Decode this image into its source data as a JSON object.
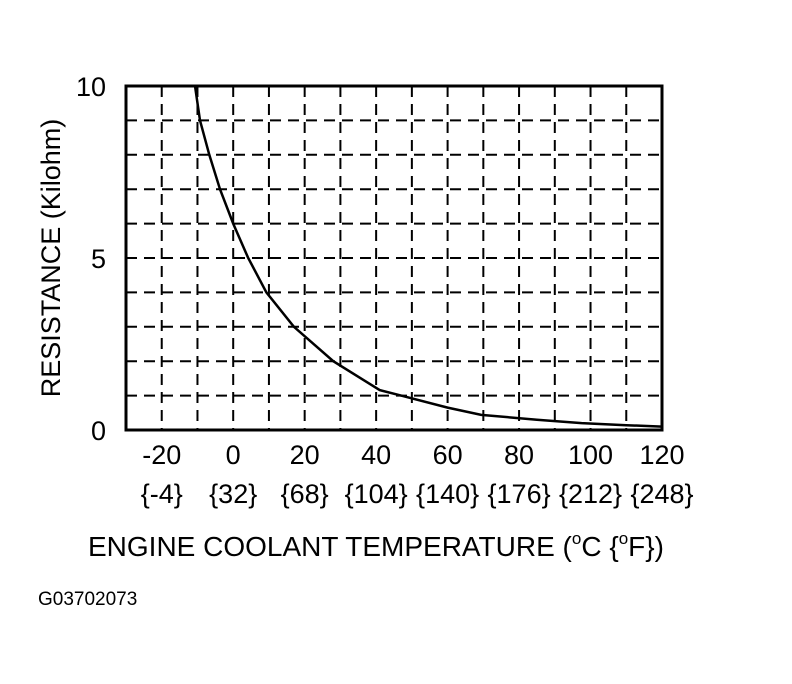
{
  "chart_data": {
    "type": "line",
    "title": "",
    "xlabel": "ENGINE COOLANT TEMPERATURE (",
    "xlabel_unit_c": "C {",
    "xlabel_unit_f": "F})",
    "xlabel_degree": "o",
    "ylabel": "RESISTANCE (Kilohm)",
    "xlim": [
      -30,
      120
    ],
    "ylim": [
      0,
      10
    ],
    "grid": true,
    "grid_style": "dashed",
    "x_grid_step": 10,
    "y_grid_step": 1,
    "x_ticks": [
      {
        "c": -20,
        "label": "-20",
        "f_label": "{-4}"
      },
      {
        "c": 0,
        "label": "0",
        "f_label": "{32}"
      },
      {
        "c": 20,
        "label": "20",
        "f_label": "{68}"
      },
      {
        "c": 40,
        "label": "40",
        "f_label": "{104}"
      },
      {
        "c": 60,
        "label": "60",
        "f_label": "{140}"
      },
      {
        "c": 80,
        "label": "80",
        "f_label": "{176}"
      },
      {
        "c": 100,
        "label": "100",
        "f_label": "{212}"
      },
      {
        "c": 120,
        "label": "120",
        "f_label": "{248}"
      }
    ],
    "y_ticks": [
      {
        "v": 0,
        "label": "0"
      },
      {
        "v": 5,
        "label": "5"
      },
      {
        "v": 10,
        "label": "10"
      }
    ],
    "series": [
      {
        "x": [
          -10.7,
          -9.3,
          -6.7,
          -3.7,
          0,
          4.2,
          9.3,
          17,
          28,
          41,
          47,
          60,
          69.4,
          85,
          97.5,
          110,
          120
        ],
        "y": [
          10,
          9,
          8,
          7,
          6,
          5,
          4,
          3,
          2,
          1.16,
          1.0,
          0.65,
          0.44,
          0.3,
          0.2,
          0.14,
          0.1
        ]
      }
    ],
    "line_color": "#000000"
  },
  "figure_id": "G03702073"
}
